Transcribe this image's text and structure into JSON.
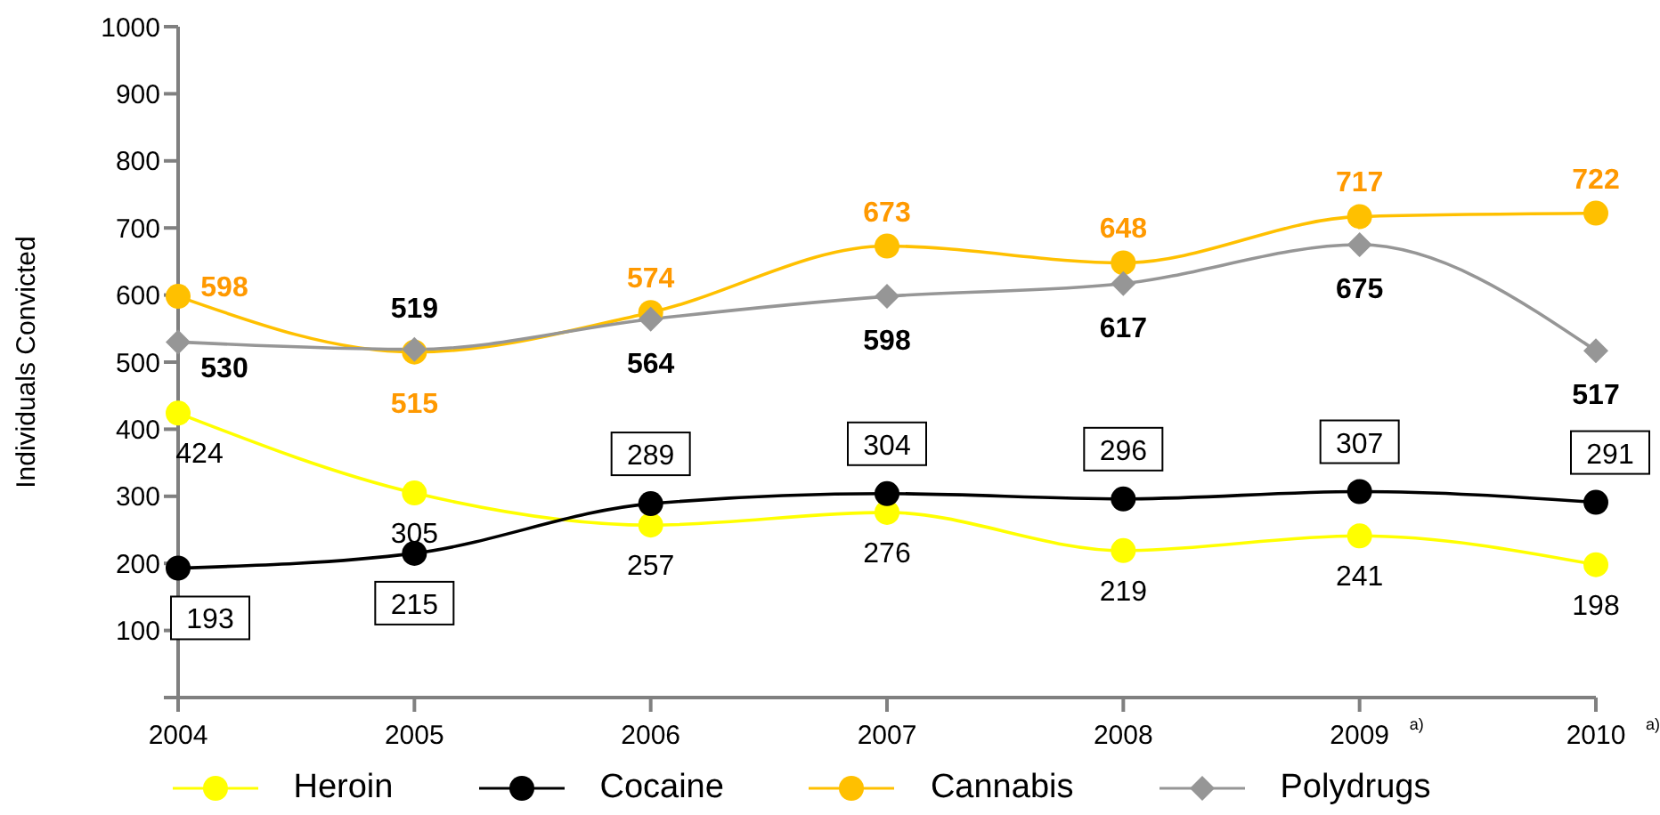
{
  "chart_data": {
    "type": "line",
    "ylabel": "Individuals Convicted",
    "categories": [
      "2004",
      "2005",
      "2006",
      "2007",
      "2008",
      "2009 $^{a)}$",
      "2010 $^{a)}$"
    ],
    "series": [
      {
        "name": "Heroin",
        "color": "#ffff00",
        "marker": "circle",
        "values": [
          424,
          305,
          257,
          276,
          219,
          241,
          198
        ]
      },
      {
        "name": "Cocaine",
        "color": "#000000",
        "marker": "circle",
        "values": [
          193,
          215,
          289,
          304,
          296,
          307,
          291
        ]
      },
      {
        "name": "Cannabis",
        "color": "#ffc000",
        "marker": "circle",
        "values": [
          598,
          515,
          574,
          673,
          648,
          717,
          722
        ]
      },
      {
        "name": "Polydrugs",
        "color": "#969696",
        "marker": "diamond",
        "values": [
          530,
          519,
          564,
          598,
          617,
          675,
          517
        ]
      }
    ],
    "ylim": [
      0,
      1000
    ],
    "yticks": [
      {
        "value": 0,
        "label": null
      },
      100,
      200,
      300,
      400,
      500,
      600,
      700,
      800,
      900,
      1000
    ],
    "data_labels": true,
    "legend": "bottom"
  }
}
